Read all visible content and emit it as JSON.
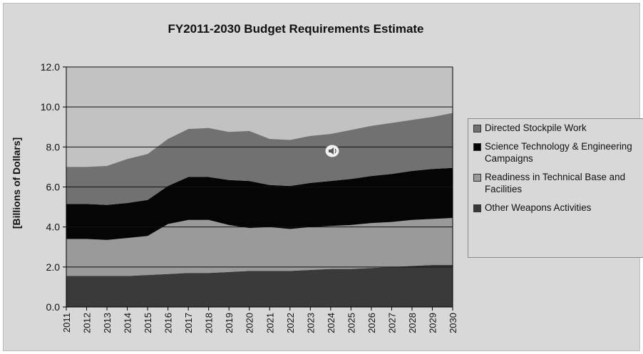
{
  "chart_data": {
    "type": "area",
    "stacked": true,
    "title": "FY2011-2030 Budget Requirements Estimate",
    "ylabel": "[Billions of Dollars]",
    "xlabel": "",
    "ylim": [
      0,
      12
    ],
    "yticks": [
      "0.0",
      "2.0",
      "4.0",
      "6.0",
      "8.0",
      "10.0",
      "12.0"
    ],
    "x": [
      "2011",
      "2012",
      "2013",
      "2014",
      "2015",
      "2016",
      "2017",
      "2018",
      "2019",
      "2020",
      "2021",
      "2022",
      "2023",
      "2024",
      "2025",
      "2026",
      "2027",
      "2028",
      "2029",
      "2030"
    ],
    "legend_position": "right",
    "series": [
      {
        "name": "Other Weapons Activities",
        "color": "#3a3a3a",
        "values": [
          1.55,
          1.55,
          1.55,
          1.55,
          1.6,
          1.65,
          1.7,
          1.7,
          1.75,
          1.8,
          1.8,
          1.8,
          1.85,
          1.9,
          1.9,
          1.95,
          2.0,
          2.05,
          2.1,
          2.1
        ]
      },
      {
        "name": "Readiness in Technical Base and Facilities",
        "color": "#9a9a9a",
        "values": [
          1.85,
          1.85,
          1.8,
          1.9,
          1.95,
          2.5,
          2.65,
          2.65,
          2.35,
          2.15,
          2.2,
          2.1,
          2.15,
          2.15,
          2.2,
          2.25,
          2.25,
          2.3,
          2.3,
          2.35
        ]
      },
      {
        "name": "Science Technology & Engineering Campaigns",
        "color": "#050505",
        "values": [
          1.75,
          1.75,
          1.75,
          1.75,
          1.8,
          1.9,
          2.15,
          2.15,
          2.25,
          2.35,
          2.1,
          2.15,
          2.2,
          2.25,
          2.3,
          2.35,
          2.4,
          2.45,
          2.5,
          2.5
        ]
      },
      {
        "name": "Directed Stockpile Work",
        "color": "#717171",
        "values": [
          1.85,
          1.85,
          1.95,
          2.2,
          2.3,
          2.35,
          2.4,
          2.45,
          2.4,
          2.5,
          2.3,
          2.3,
          2.35,
          2.35,
          2.45,
          2.5,
          2.55,
          2.55,
          2.6,
          2.75
        ]
      }
    ],
    "legend": [
      {
        "label": "Directed Stockpile Work",
        "color": "#717171"
      },
      {
        "label": "Science Technology & Engineering Campaigns",
        "color": "#050505"
      },
      {
        "label": "Readiness in Technical Base and Facilities",
        "color": "#9a9a9a"
      },
      {
        "label": "Other Weapons Activities",
        "color": "#3a3a3a"
      }
    ],
    "colors": {
      "chart_background": "#d8d8d8",
      "plot_background": "#c2c2c2",
      "gridline": "#111111"
    }
  }
}
